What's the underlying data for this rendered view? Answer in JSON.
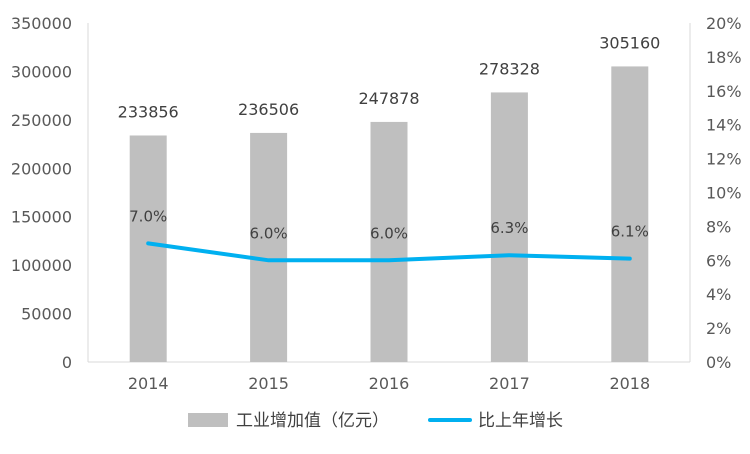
{
  "chart_data": {
    "type": "bar+line",
    "categories": [
      "2014",
      "2015",
      "2016",
      "2017",
      "2018"
    ],
    "series": [
      {
        "name": "工业增加值（亿元）",
        "type": "bar",
        "axis": "left",
        "color": "#bfbfbf",
        "values": [
          233856,
          236506,
          247878,
          278328,
          305160
        ],
        "labels": [
          "233856",
          "236506",
          "247878",
          "278328",
          "305160"
        ]
      },
      {
        "name": "比上年增长",
        "type": "line",
        "axis": "right",
        "color": "#00b0f0",
        "values": [
          7.0,
          6.0,
          6.0,
          6.3,
          6.1
        ],
        "labels": [
          "7.0%",
          "6.0%",
          "6.0%",
          "6.3%",
          "6.1%"
        ]
      }
    ],
    "y_left": {
      "min": 0,
      "max": 350000,
      "ticks": [
        "0",
        "50000",
        "100000",
        "150000",
        "200000",
        "250000",
        "300000",
        "350000"
      ]
    },
    "y_right": {
      "min": 0,
      "max": 20,
      "ticks": [
        "0%",
        "2%",
        "4%",
        "6%",
        "8%",
        "10%",
        "12%",
        "14%",
        "16%",
        "18%",
        "20%"
      ]
    },
    "grid": false,
    "legend_position": "bottom"
  }
}
